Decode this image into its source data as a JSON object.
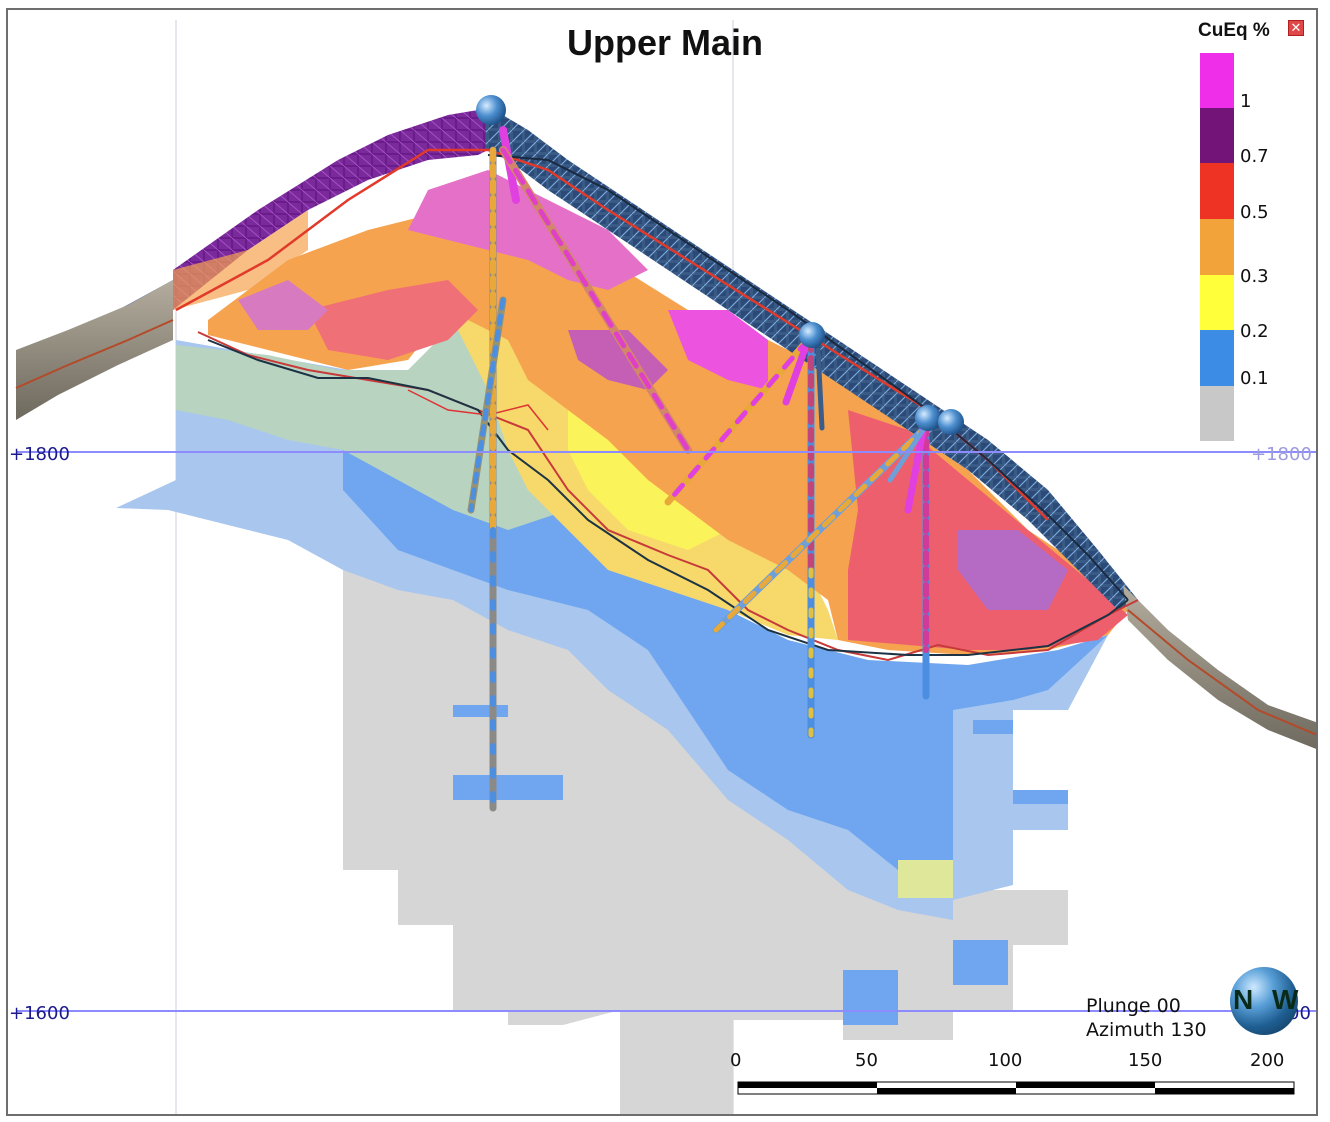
{
  "title": "Upper Main",
  "legend": {
    "title": "CuEq %",
    "close_icon": "close-icon",
    "entries": [
      {
        "label": "1",
        "color": "#ee2ee8"
      },
      {
        "label": "0.7",
        "color": "#731478"
      },
      {
        "label": "0.5",
        "color": "#ee3325"
      },
      {
        "label": "0.3",
        "color": "#f2a33a"
      },
      {
        "label": "0.2",
        "color": "#ffff3a"
      },
      {
        "label": "0.1",
        "color": "#3c8ce6"
      },
      {
        "label": "",
        "color": "#c8c8c8"
      }
    ]
  },
  "elevations": [
    {
      "label": "+1800",
      "left_label": "+1800",
      "right_label": "+1800"
    },
    {
      "label": "+1600",
      "left_label": "+1600",
      "right_label": "00"
    }
  ],
  "view": {
    "plunge": "Plunge 00",
    "azimuth": "Azimuth 130"
  },
  "scale_bar": {
    "labels": [
      "0",
      "50",
      "100",
      "150",
      "200"
    ]
  },
  "compass": {
    "icon": "compass-globe-icon",
    "left": "N",
    "right": "W"
  },
  "colors": {
    "gridline": "#8c8cff",
    "elev_label": "#1a1a8c",
    "elev_label_right": "#9c9cdc",
    "terrain": "#8a8578"
  }
}
